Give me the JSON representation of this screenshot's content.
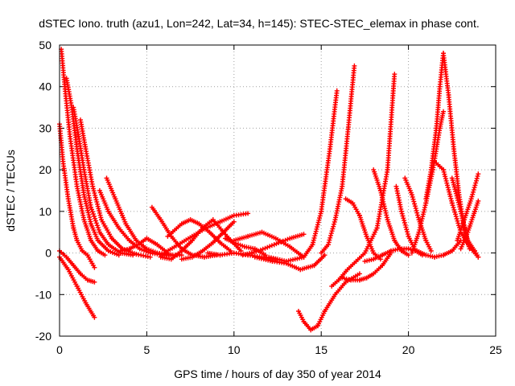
{
  "chart_data": {
    "type": "scatter",
    "title": "dSTEC Iono. truth (azu1, Lon=242, Lat=34, h=145): STEC-STEC_elemax in phase cont.",
    "xlabel": "GPS time / hours of day 350 of year 2014",
    "ylabel": "dSTEC  / TECUs",
    "xlim": [
      0,
      25
    ],
    "ylim": [
      -20,
      50
    ],
    "xticks": [
      0,
      5,
      10,
      15,
      20,
      25
    ],
    "yticks": [
      -20,
      -10,
      0,
      10,
      20,
      30,
      40,
      50
    ],
    "grid": true,
    "marker": "plus",
    "color": "#ff0000",
    "series": [
      {
        "x": [
          0.0,
          0.4,
          0.8,
          1.2,
          1.6,
          2.0
        ],
        "y": [
          0.5,
          -1.0,
          -3.0,
          -5.0,
          -6.5,
          -7.0
        ]
      },
      {
        "x": [
          0.0,
          0.5,
          1.0,
          1.5,
          2.0
        ],
        "y": [
          -1.0,
          -4.0,
          -8.0,
          -12.0,
          -15.5
        ]
      },
      {
        "x": [
          0.0,
          0.2,
          0.5,
          0.8,
          1.0,
          1.3,
          1.6,
          2.0
        ],
        "y": [
          31.0,
          22.0,
          13.0,
          6.0,
          3.0,
          0.5,
          -0.5,
          -3.5
        ]
      },
      {
        "x": [
          0.1,
          0.3,
          0.6,
          1.0,
          1.4,
          1.8,
          2.2,
          2.6
        ],
        "y": [
          49.0,
          40.0,
          28.0,
          16.0,
          8.0,
          3.0,
          0.5,
          -0.5
        ]
      },
      {
        "x": [
          0.4,
          0.7,
          1.0,
          1.4,
          1.8,
          2.2,
          2.8,
          3.4
        ],
        "y": [
          42.0,
          35.0,
          25.0,
          14.0,
          7.0,
          3.0,
          0.5,
          -0.5
        ]
      },
      {
        "x": [
          0.8,
          1.1,
          1.4,
          1.8,
          2.3,
          2.8,
          3.5,
          4.2
        ],
        "y": [
          35.0,
          28.0,
          20.0,
          11.0,
          5.0,
          2.0,
          0.0,
          -0.5
        ]
      },
      {
        "x": [
          1.2,
          1.5,
          1.9,
          2.4,
          3.0,
          3.6,
          4.4,
          5.2
        ],
        "y": [
          32.0,
          25.0,
          16.0,
          8.0,
          3.5,
          1.0,
          -0.3,
          -1.0
        ]
      },
      {
        "x": [
          2.3,
          2.8,
          3.4,
          4.0,
          4.6,
          5.2,
          6.0,
          7.0
        ],
        "y": [
          15.0,
          10.0,
          6.0,
          3.0,
          1.0,
          0.0,
          -0.5,
          -0.5
        ]
      },
      {
        "x": [
          2.7,
          3.2,
          3.8,
          4.4,
          5.0,
          5.6,
          6.4
        ],
        "y": [
          18.0,
          13.0,
          7.0,
          3.0,
          1.0,
          0.0,
          -0.5
        ]
      },
      {
        "x": [
          3.5,
          4.0,
          4.5,
          5.0,
          5.6,
          6.2
        ],
        "y": [
          0.5,
          1.0,
          2.0,
          3.5,
          2.0,
          0.0
        ]
      },
      {
        "x": [
          5.3,
          5.8,
          6.4,
          7.0,
          7.6,
          8.3,
          9.0
        ],
        "y": [
          11.0,
          8.0,
          4.0,
          1.0,
          -0.5,
          -1.0,
          -0.5
        ]
      },
      {
        "x": [
          5.8,
          6.4,
          7.0,
          7.6,
          8.2,
          8.8,
          9.6,
          10.4
        ],
        "y": [
          -1.0,
          -1.5,
          0.5,
          3.0,
          6.0,
          8.0,
          4.0,
          0.5
        ]
      },
      {
        "x": [
          6.0,
          6.8,
          7.6,
          8.4,
          9.2,
          10.0,
          10.8
        ],
        "y": [
          0.0,
          2.0,
          4.0,
          6.0,
          7.5,
          9.0,
          9.5
        ]
      },
      {
        "x": [
          6.2,
          7.0,
          7.5,
          8.0,
          8.6,
          9.2,
          9.8
        ],
        "y": [
          4.0,
          7.0,
          8.0,
          7.0,
          5.0,
          2.5,
          0.5
        ]
      },
      {
        "x": [
          7.0,
          7.6,
          8.2,
          8.8,
          9.4,
          10.0
        ],
        "y": [
          -1.5,
          -1.0,
          0.5,
          2.5,
          5.0,
          7.5
        ]
      },
      {
        "x": [
          8.5,
          9.2,
          10.0,
          10.8,
          11.6,
          12.4
        ],
        "y": [
          0.0,
          -0.5,
          0.0,
          -0.5,
          -1.0,
          -1.5
        ]
      },
      {
        "x": [
          9.5,
          10.0,
          10.6,
          11.2,
          11.8
        ],
        "y": [
          3.5,
          2.5,
          1.5,
          1.0,
          -0.5
        ]
      },
      {
        "x": [
          10.0,
          10.8,
          11.6,
          12.4,
          13.2,
          14.0
        ],
        "y": [
          3.0,
          4.0,
          5.0,
          3.5,
          1.5,
          -1.0
        ]
      },
      {
        "x": [
          10.5,
          11.4,
          12.3,
          13.2,
          14.0
        ],
        "y": [
          -0.5,
          0.5,
          2.0,
          3.5,
          4.5
        ]
      },
      {
        "x": [
          11.2,
          12.2,
          13.0,
          13.8,
          14.6,
          15.2
        ],
        "y": [
          -1.0,
          -2.0,
          -2.5,
          -4.0,
          -3.0,
          -0.5
        ]
      },
      {
        "x": [
          12.0,
          13.0,
          14.0,
          14.5,
          15.0,
          15.5,
          15.9
        ],
        "y": [
          -1.0,
          -2.0,
          -1.0,
          2.0,
          10.0,
          25.0,
          39.0
        ]
      },
      {
        "x": [
          13.7,
          14.0,
          14.4,
          14.8,
          15.2,
          15.8,
          16.4,
          17.2
        ],
        "y": [
          -14.0,
          -16.5,
          -18.5,
          -17.5,
          -14.0,
          -10.0,
          -7.0,
          -5.0
        ]
      },
      {
        "x": [
          15.0,
          15.4,
          15.8,
          16.2,
          16.5,
          16.9
        ],
        "y": [
          0.0,
          2.0,
          8.0,
          16.0,
          28.0,
          45.0
        ]
      },
      {
        "x": [
          16.4,
          16.8,
          17.2,
          17.6,
          18.0,
          18.4
        ],
        "y": [
          13.0,
          12.0,
          9.0,
          4.0,
          0.0,
          -1.5
        ]
      },
      {
        "x": [
          16.2,
          16.7,
          17.2,
          17.6,
          18.0,
          18.5,
          19.0
        ],
        "y": [
          -6.0,
          -6.5,
          -6.5,
          -6.0,
          -5.0,
          -3.0,
          0.0
        ]
      },
      {
        "x": [
          15.6,
          16.0,
          16.5,
          17.0,
          17.5,
          18.2,
          18.8,
          19.2
        ],
        "y": [
          -8.0,
          -6.5,
          -4.0,
          -2.0,
          0.0,
          6.0,
          20.0,
          43.0
        ]
      },
      {
        "x": [
          18.0,
          18.4,
          18.8,
          19.2,
          19.6,
          20.0
        ],
        "y": [
          20.0,
          15.0,
          8.0,
          3.0,
          0.5,
          -0.5
        ]
      },
      {
        "x": [
          17.5,
          18.0,
          18.5,
          19.0,
          19.5,
          20.0,
          20.5
        ],
        "y": [
          -2.0,
          -1.5,
          -0.5,
          0.5,
          1.0,
          1.0,
          0.5
        ]
      },
      {
        "x": [
          19.3,
          19.6,
          20.0,
          20.4,
          20.8
        ],
        "y": [
          16.0,
          10.0,
          4.0,
          0.5,
          -0.5
        ]
      },
      {
        "x": [
          19.8,
          20.2,
          20.6,
          21.0,
          21.3
        ],
        "y": [
          18.0,
          14.0,
          8.0,
          3.0,
          0.5
        ]
      },
      {
        "x": [
          20.2,
          20.6,
          21.0,
          21.4,
          21.8,
          22.0
        ],
        "y": [
          0.0,
          5.0,
          12.0,
          20.0,
          30.0,
          34.0
        ]
      },
      {
        "x": [
          21.0,
          21.3,
          21.6,
          21.8,
          22.0
        ],
        "y": [
          13.0,
          20.0,
          30.0,
          40.0,
          48.0
        ]
      },
      {
        "x": [
          22.0,
          22.3,
          22.6,
          22.9,
          23.2,
          23.5
        ],
        "y": [
          48.0,
          38.0,
          25.0,
          14.0,
          6.0,
          1.0
        ]
      },
      {
        "x": [
          21.5,
          22.0,
          22.5,
          23.0,
          23.5,
          24.0
        ],
        "y": [
          22.0,
          20.0,
          12.0,
          5.0,
          1.5,
          -1.0
        ]
      },
      {
        "x": [
          20.5,
          21.0,
          21.5,
          22.0,
          22.5,
          23.0
        ],
        "y": [
          0.5,
          -0.5,
          -1.0,
          -0.5,
          0.5,
          3.0
        ]
      },
      {
        "x": [
          22.5,
          23.0,
          23.4,
          23.8,
          24.0
        ],
        "y": [
          18.0,
          10.0,
          3.0,
          0.5,
          -1.0
        ]
      },
      {
        "x": [
          22.8,
          23.2,
          23.6,
          24.0
        ],
        "y": [
          3.0,
          8.0,
          13.0,
          19.0
        ]
      },
      {
        "x": [
          23.0,
          23.4,
          23.8,
          24.0
        ],
        "y": [
          1.0,
          5.0,
          10.0,
          12.5
        ]
      }
    ]
  }
}
